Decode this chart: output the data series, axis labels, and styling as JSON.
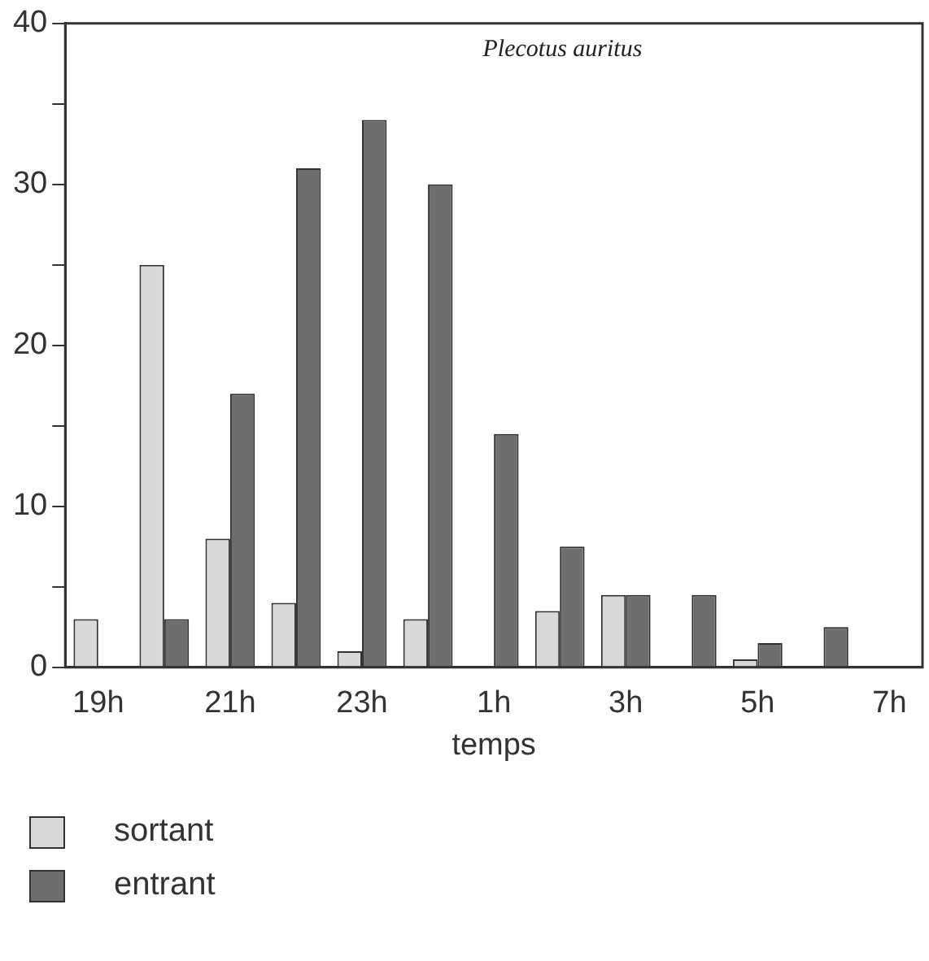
{
  "chart_data": {
    "type": "bar",
    "title": "Plecotus auritus",
    "xlabel": "temps",
    "categories": [
      "19h",
      null,
      "21h",
      null,
      "23h",
      null,
      "1h",
      null,
      "3h",
      null,
      "5h",
      null,
      "7h"
    ],
    "series": [
      {
        "name": "sortant",
        "color": "#d9d9d9",
        "values": [
          3,
          25,
          8,
          4,
          1,
          3,
          null,
          3.5,
          4.5,
          null,
          0.5,
          null,
          null
        ]
      },
      {
        "name": "entrant",
        "color": "#6e6e6e",
        "values": [
          null,
          3,
          17,
          31,
          34,
          30,
          14.5,
          7.5,
          4.5,
          4.5,
          1.5,
          2.5,
          null
        ]
      }
    ],
    "ylim": [
      0,
      40
    ],
    "yticks": [
      0,
      {
        "value": 5,
        "label": null
      },
      10,
      {
        "value": 15,
        "label": null
      },
      20,
      {
        "value": 25,
        "label": null
      },
      30,
      {
        "value": 35,
        "label": null
      },
      40
    ],
    "grid": false,
    "legend": "bottom left"
  }
}
